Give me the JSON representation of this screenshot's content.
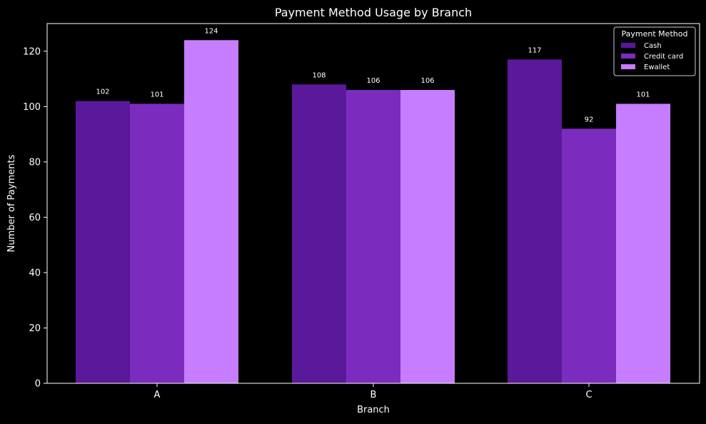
{
  "chart_data": {
    "type": "bar",
    "title": "Payment Method Usage by Branch",
    "xlabel": "Branch",
    "ylabel": "Number of Payments",
    "categories": [
      "A",
      "B",
      "C"
    ],
    "series": [
      {
        "name": "Cash",
        "values": [
          102,
          108,
          117
        ],
        "color": "#5a189a"
      },
      {
        "name": "Credit card",
        "values": [
          101,
          106,
          92
        ],
        "color": "#7b2cbf"
      },
      {
        "name": "Ewallet",
        "values": [
          124,
          106,
          101
        ],
        "color": "#c77dff"
      }
    ],
    "ylim": [
      0,
      130
    ],
    "yticks": [
      0,
      20,
      40,
      60,
      80,
      100,
      120
    ],
    "legend": {
      "title": "Payment Method",
      "placement": "top-right"
    },
    "grid": false,
    "colors": {
      "background": "#000000",
      "text": "#ffffff",
      "axis": "#ffffff"
    }
  }
}
